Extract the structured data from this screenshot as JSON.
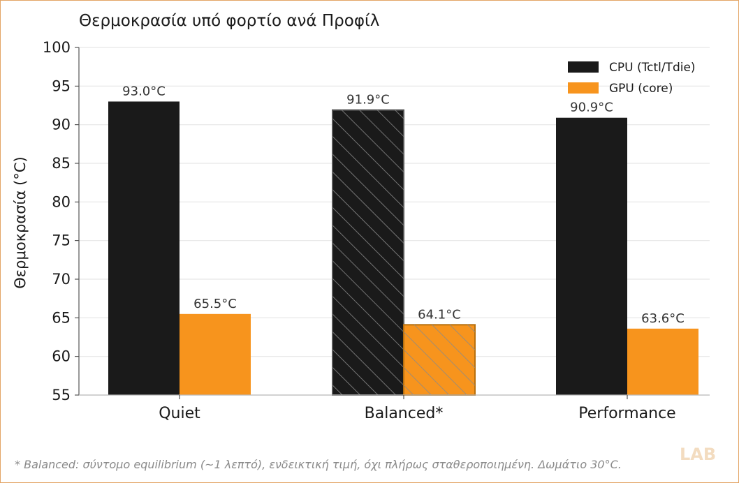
{
  "chart_data": {
    "type": "bar",
    "title": "Θερμοκρασία υπό φορτίο ανά Προφίλ",
    "ylabel": "Θερμοκρασία (°C)",
    "xlabel": "",
    "categories": [
      "Quiet",
      "Balanced*",
      "Performance"
    ],
    "ylim": [
      55,
      100
    ],
    "yticks": [
      55,
      60,
      65,
      70,
      75,
      80,
      85,
      90,
      95,
      100
    ],
    "grid": "horizontal",
    "legend_position": "top-right",
    "value_suffix": "°C",
    "hatched_category": "Balanced*",
    "series": [
      {
        "name": "CPU (Tctl/Tdie)",
        "color": "#1a1a1a",
        "values": [
          93.0,
          91.9,
          90.9
        ]
      },
      {
        "name": "GPU (core)",
        "color": "#f7941d",
        "values": [
          65.5,
          64.1,
          63.6
        ]
      }
    ]
  },
  "footnote": "* Balanced: σύντομο equilibrium (~1 λεπτό), ενδεικτική τιμή, όχι πλήρως σταθεροποιημένη. Δωμάτιο 30°C.",
  "watermark": "LAB"
}
